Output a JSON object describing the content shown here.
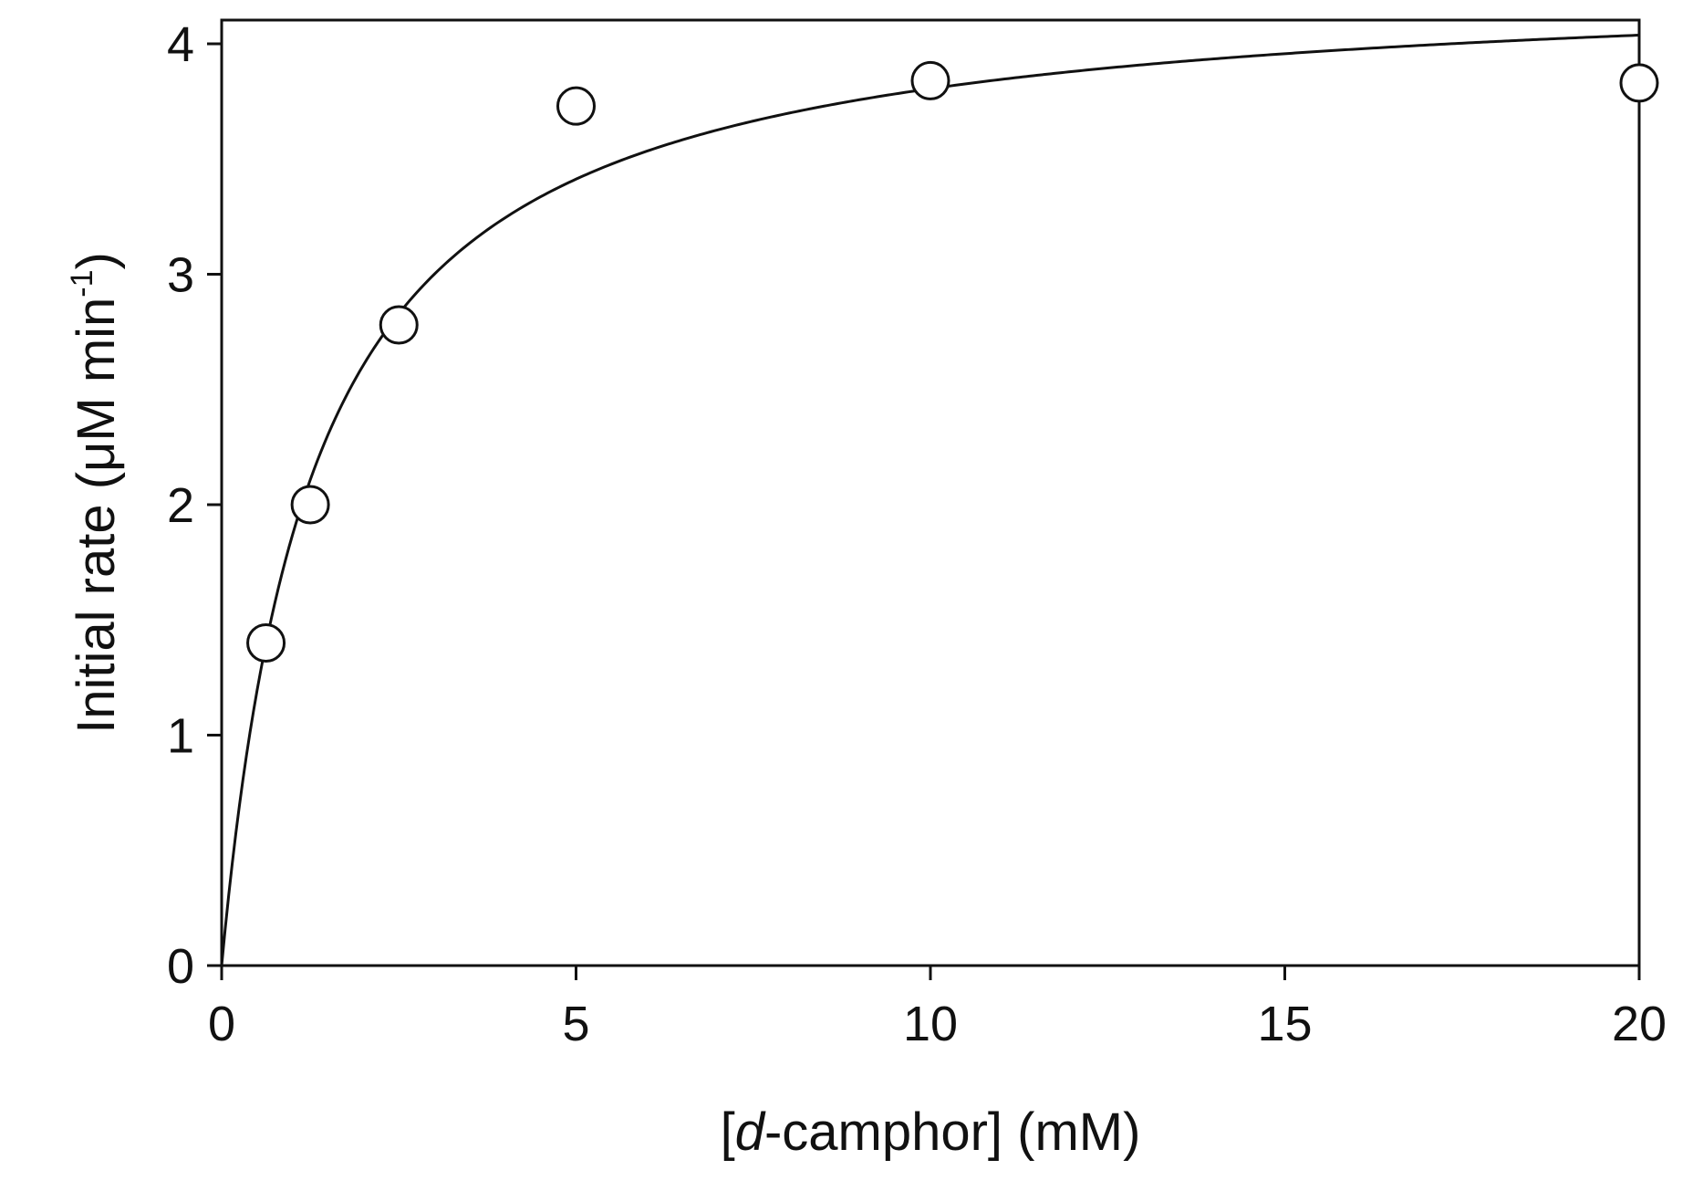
{
  "chart_data": {
    "type": "scatter",
    "title": "",
    "xlabel": {
      "prefix": "[",
      "italic": "d",
      "suffix": "-camphor] (mM)"
    },
    "ylabel": {
      "main": "Initial rate (μM min",
      "superscript": "-1",
      "close": ")"
    },
    "xlim": [
      0,
      20
    ],
    "ylim": [
      0,
      4.1
    ],
    "xticks": [
      0,
      5,
      10,
      15,
      20
    ],
    "yticks": [
      0,
      1,
      2,
      3,
      4
    ],
    "xtick_labels": [
      "0",
      "5",
      "10",
      "15",
      "20"
    ],
    "ytick_labels": [
      "0",
      "1",
      "2",
      "3",
      "4"
    ],
    "grid": false,
    "series": [
      {
        "kind": "points",
        "marker": "open-circle",
        "x": [
          0.625,
          1.25,
          2.5,
          5,
          10,
          20
        ],
        "y": [
          1.4,
          2.0,
          2.78,
          3.73,
          3.84,
          3.83
        ]
      },
      {
        "kind": "fit-line",
        "model": "michaelis-menten",
        "vmax": 4.3,
        "km": 1.3,
        "x_range": [
          0,
          20
        ]
      }
    ],
    "colors": {
      "line": "#111111",
      "marker_fill": "#ffffff",
      "marker_stroke": "#111111",
      "axis": "#111111"
    }
  }
}
